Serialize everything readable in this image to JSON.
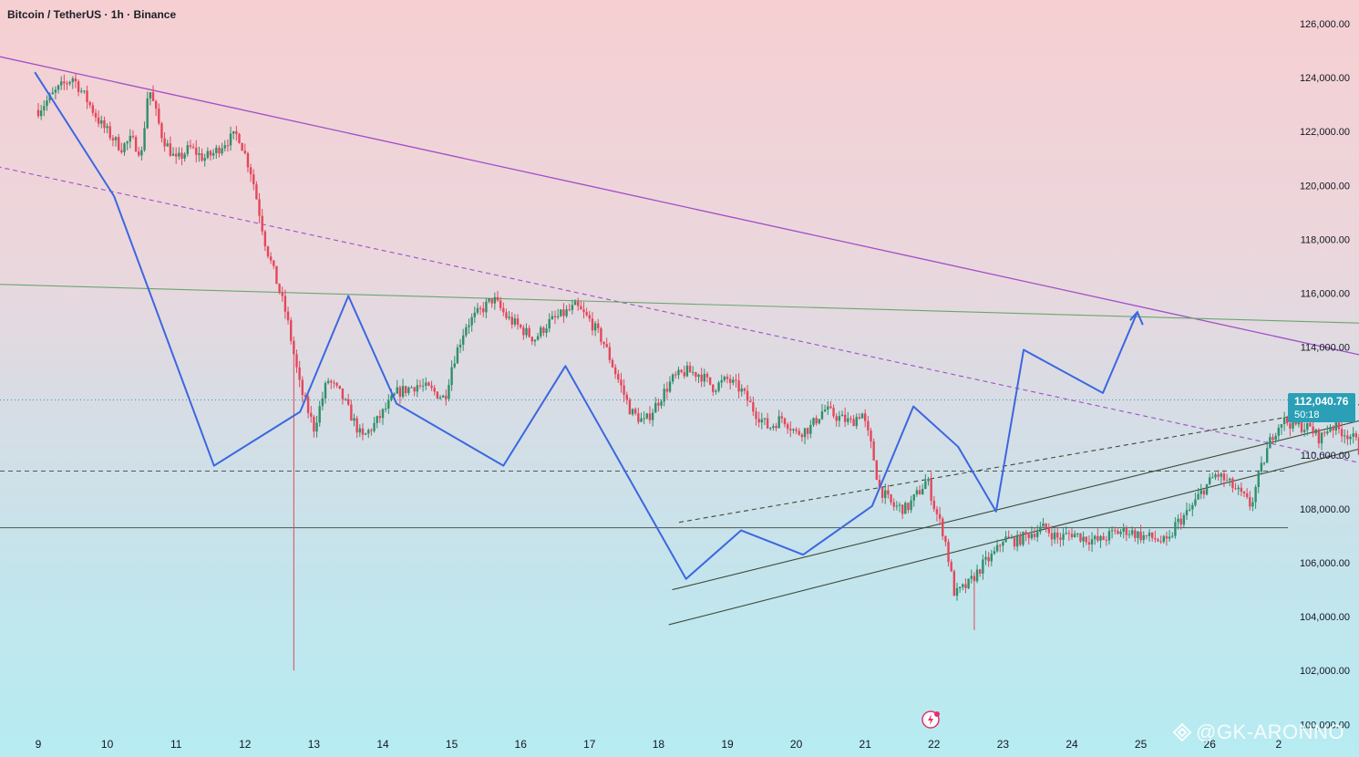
{
  "header": {
    "title": "Bitcoin / TetherUS · 1h · Binance"
  },
  "watermark": {
    "text": "@GK-ARONNO"
  },
  "price_badge": {
    "price": "112,040.76",
    "countdown": "50:18",
    "color": "#2a9fb5"
  },
  "colors": {
    "bull": "#2f8f6a",
    "bear": "#e4475a",
    "pattern": "#3b67e0",
    "trend_purple": "#a24dc9",
    "green_line": "#6aa66e",
    "channel": "#3d4a3a"
  },
  "chart_data": {
    "type": "candlestick",
    "ylim": [
      100000,
      126700
    ],
    "y_ticks": [
      "126,000.00",
      "124,000.00",
      "122,000.00",
      "120,000.00",
      "118,000.00",
      "116,000.00",
      "114,000.00",
      "112,000.00",
      "110,000.00",
      "108,000.00",
      "106,000.00",
      "104,000.00",
      "102,000.00",
      "100,000.00"
    ],
    "x_ticks": [
      "9",
      "10",
      "11",
      "12",
      "13",
      "14",
      "15",
      "16",
      "17",
      "18",
      "19",
      "20",
      "21",
      "22",
      "23",
      "24",
      "25",
      "26",
      "2"
    ],
    "grid": false,
    "close_series": [
      [
        0,
        122800
      ],
      [
        0.3,
        123600
      ],
      [
        0.5,
        124000
      ],
      [
        0.7,
        123200
      ],
      [
        0.9,
        122300
      ],
      [
        1.0,
        122000
      ],
      [
        1.2,
        121400
      ],
      [
        1.35,
        121700
      ],
      [
        1.5,
        121200
      ],
      [
        1.6,
        123700
      ],
      [
        1.8,
        121800
      ],
      [
        2.0,
        120900
      ],
      [
        2.2,
        121400
      ],
      [
        2.4,
        121000
      ],
      [
        2.55,
        121200
      ],
      [
        2.7,
        121600
      ],
      [
        2.9,
        121900
      ],
      [
        3.1,
        120400
      ],
      [
        3.3,
        117800
      ],
      [
        3.6,
        115200
      ],
      [
        3.8,
        112500
      ],
      [
        4.0,
        111000
      ],
      [
        4.2,
        112800
      ],
      [
        4.4,
        112200
      ],
      [
        4.7,
        110600
      ],
      [
        4.9,
        111200
      ],
      [
        5.2,
        112300
      ],
      [
        5.5,
        112600
      ],
      [
        5.7,
        112400
      ],
      [
        5.9,
        112100
      ],
      [
        6.0,
        113300
      ],
      [
        6.2,
        114800
      ],
      [
        6.4,
        115300
      ],
      [
        6.6,
        115800
      ],
      [
        6.8,
        115100
      ],
      [
        7.0,
        114700
      ],
      [
        7.2,
        114300
      ],
      [
        7.4,
        114900
      ],
      [
        7.6,
        115200
      ],
      [
        7.8,
        115500
      ],
      [
        8.0,
        115000
      ],
      [
        8.2,
        114200
      ],
      [
        8.4,
        112900
      ],
      [
        8.6,
        111600
      ],
      [
        8.8,
        111200
      ],
      [
        9.0,
        112000
      ],
      [
        9.2,
        112800
      ],
      [
        9.4,
        113100
      ],
      [
        9.6,
        113000
      ],
      [
        9.8,
        112500
      ],
      [
        10.0,
        112800
      ],
      [
        10.2,
        112400
      ],
      [
        10.4,
        111600
      ],
      [
        10.6,
        111000
      ],
      [
        10.8,
        111400
      ],
      [
        11.0,
        110800
      ],
      [
        11.2,
        111000
      ],
      [
        11.4,
        111700
      ],
      [
        11.6,
        111400
      ],
      [
        11.8,
        111200
      ],
      [
        11.95,
        111600
      ],
      [
        12.1,
        110200
      ],
      [
        12.2,
        108800
      ],
      [
        12.4,
        108100
      ],
      [
        12.6,
        108000
      ],
      [
        12.8,
        108700
      ],
      [
        12.9,
        109100
      ],
      [
        13.0,
        108100
      ],
      [
        13.15,
        107000
      ],
      [
        13.3,
        104800
      ],
      [
        13.5,
        105200
      ],
      [
        13.7,
        105900
      ],
      [
        13.9,
        106400
      ],
      [
        14.0,
        106900
      ],
      [
        14.2,
        106800
      ],
      [
        14.4,
        107100
      ],
      [
        14.6,
        107300
      ],
      [
        14.8,
        106900
      ],
      [
        15.0,
        107100
      ],
      [
        15.2,
        106900
      ],
      [
        15.4,
        106800
      ],
      [
        15.6,
        107100
      ],
      [
        15.8,
        107200
      ],
      [
        16.0,
        107000
      ],
      [
        16.2,
        106900
      ],
      [
        16.4,
        106700
      ],
      [
        16.5,
        107400
      ],
      [
        16.7,
        107900
      ],
      [
        16.9,
        108700
      ],
      [
        17.1,
        109300
      ],
      [
        17.3,
        108900
      ],
      [
        17.5,
        108400
      ],
      [
        17.6,
        108100
      ],
      [
        17.7,
        109100
      ],
      [
        17.9,
        110700
      ],
      [
        18.05,
        111300
      ],
      [
        18.25,
        111100
      ],
      [
        18.45,
        111000
      ],
      [
        18.6,
        110600
      ],
      [
        18.75,
        111100
      ],
      [
        18.9,
        110900
      ],
      [
        19.05,
        110700
      ],
      [
        19.15,
        110400
      ],
      [
        19.25,
        109100
      ],
      [
        19.35,
        107900
      ],
      [
        19.45,
        107700
      ],
      [
        19.6,
        107900
      ],
      [
        19.75,
        108100
      ],
      [
        19.85,
        108600
      ],
      [
        19.9,
        109100
      ],
      [
        19.95,
        111200
      ],
      [
        20.0,
        113400
      ],
      [
        20.05,
        113700
      ],
      [
        20.1,
        112700
      ],
      [
        20.2,
        112000
      ],
      [
        20.3,
        112040
      ]
    ],
    "pattern_path": [
      [
        -0.05,
        124200
      ],
      [
        1.1,
        119600
      ],
      [
        2.55,
        109600
      ],
      [
        3.8,
        111600
      ],
      [
        4.5,
        115900
      ],
      [
        5.2,
        111900
      ],
      [
        6.75,
        109600
      ],
      [
        7.65,
        113300
      ],
      [
        9.4,
        105400
      ],
      [
        10.2,
        107200
      ],
      [
        11.1,
        106300
      ],
      [
        12.1,
        108100
      ],
      [
        12.7,
        111800
      ],
      [
        13.35,
        110300
      ],
      [
        13.9,
        107900
      ],
      [
        14.3,
        113900
      ],
      [
        15.45,
        112300
      ],
      [
        15.95,
        115300
      ]
    ],
    "arrow_tip": [
      15.95,
      115300
    ],
    "purple_trend": [
      [
        0,
        124500
      ],
      [
        20.45,
        113000
      ]
    ],
    "purple_dashed": [
      [
        0,
        120400
      ],
      [
        20.45,
        109000
      ]
    ],
    "green_line": [
      [
        0,
        116300
      ],
      [
        20.45,
        114800
      ]
    ],
    "horizontal_levels": [
      {
        "y": 107300,
        "style": "solid"
      },
      {
        "y": 109400,
        "style": "dashed"
      },
      {
        "y": 112040,
        "style": "dotted"
      }
    ],
    "channel_lines": [
      {
        "from": [
          9.2,
          105000
        ],
        "to": [
          19.7,
          111600
        ],
        "style": "solid"
      },
      {
        "from": [
          9.15,
          103700
        ],
        "to": [
          19.6,
          110500
        ],
        "style": "solid"
      },
      {
        "from": [
          9.3,
          107500
        ],
        "to": [
          20.6,
          112500
        ],
        "style": "dashed"
      }
    ],
    "wick_extremes": [
      {
        "x": 3.7,
        "low": 102000
      },
      {
        "x": 13.6,
        "low": 103500
      },
      {
        "x": 20.1,
        "high": 113900
      }
    ]
  }
}
